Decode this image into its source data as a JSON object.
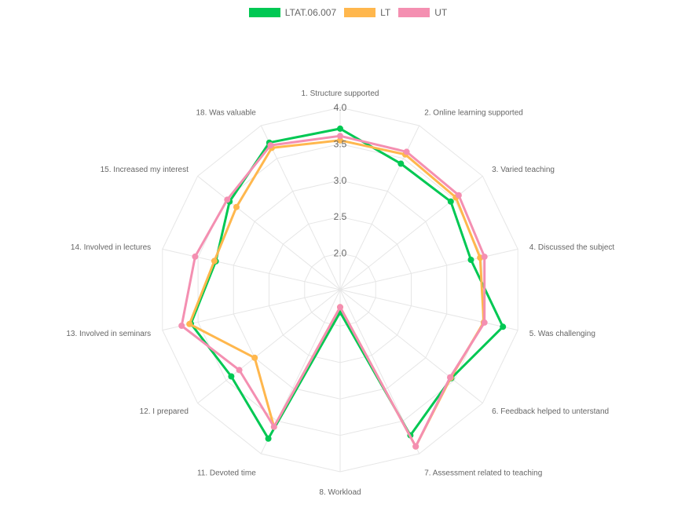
{
  "chart_data": {
    "type": "radar",
    "labels": [
      "1. Structure supported",
      "2. Online learning supported",
      "3. Varied teaching",
      "4. Discussed the subject",
      "5. Was challenging",
      "6. Feedback helped to unterstand",
      "7. Assessment related to teaching",
      "8. Workload",
      "11. Devoted time",
      "12. I prepared",
      "13. Involved in seminars",
      "14. Involved in lectures",
      "15. Increased my interest",
      "18. Was valuable"
    ],
    "r_min": 1.5,
    "r_max": 4.0,
    "ticks": [
      "2.0",
      "2.5",
      "3.0",
      "3.5",
      "4.0"
    ],
    "tick_values": [
      2.0,
      2.5,
      3.0,
      3.5,
      4.0
    ],
    "grid": true,
    "legend_position": "top",
    "series": [
      {
        "name": "LTAT.06.007",
        "color": "#00c853",
        "fill": "#00c853",
        "values": [
          3.71,
          3.42,
          3.44,
          3.34,
          3.79,
          3.45,
          3.72,
          1.81,
          3.77,
          3.41,
          3.6,
          3.25,
          3.44,
          3.74
        ]
      },
      {
        "name": "LT",
        "color": "#ffb74d",
        "fill": "#ffb74d",
        "values": [
          3.55,
          3.56,
          3.53,
          3.47,
          3.52,
          3.44,
          3.89,
          1.74,
          3.59,
          3.0,
          3.62,
          3.27,
          3.32,
          3.66
        ]
      },
      {
        "name": "UT",
        "color": "#f48fb1",
        "fill": "#f48fb1",
        "values": [
          3.61,
          3.6,
          3.58,
          3.53,
          3.53,
          3.43,
          3.89,
          1.74,
          3.59,
          3.27,
          3.73,
          3.54,
          3.48,
          3.7
        ]
      }
    ]
  }
}
